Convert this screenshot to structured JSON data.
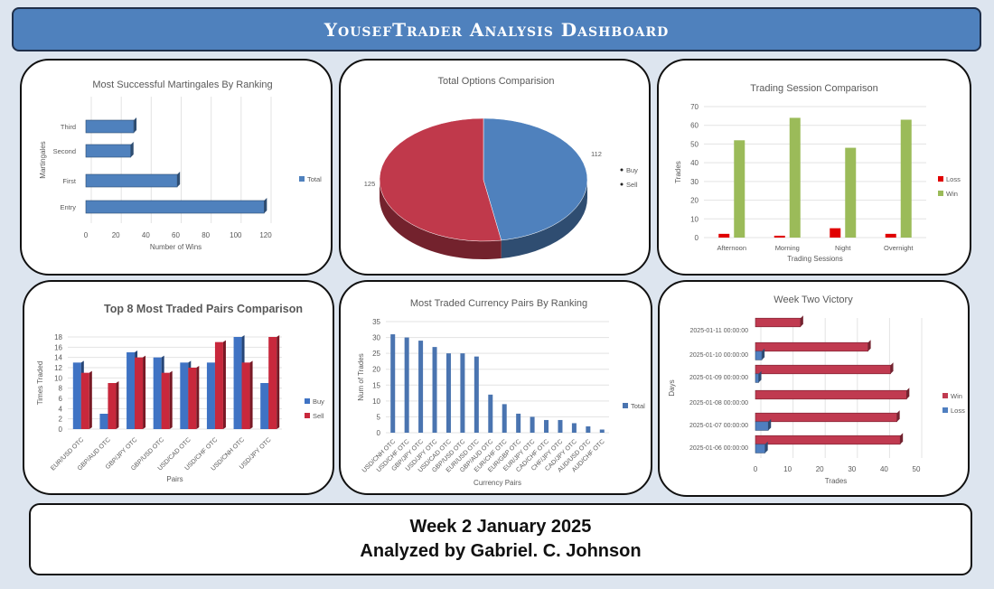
{
  "header": {
    "title": "YousefTrader Analysis Dashboard"
  },
  "footer": {
    "line1": "Week 2 January 2025",
    "line2": "Analyzed by Gabriel. C. Johnson"
  },
  "colors": {
    "blue": "#4f81bd",
    "red": "#c0394b",
    "green": "#9bbb59",
    "loss_red": "#e00000"
  },
  "chart_data": [
    {
      "id": "martingales",
      "type": "bar",
      "orientation": "horizontal",
      "title": "Most Successful Martingales By Ranking",
      "xlabel": "Number of Wins",
      "ylabel": "Martingales",
      "categories": [
        "Entry",
        "First",
        "Second",
        "Third"
      ],
      "series": [
        {
          "name": "Total",
          "values": [
            119,
            61,
            30,
            32
          ]
        }
      ],
      "xlim": [
        0,
        120
      ],
      "xticks": [
        0,
        20,
        40,
        60,
        80,
        100,
        120
      ],
      "grid": true,
      "legend": "right"
    },
    {
      "id": "options",
      "type": "pie",
      "title": "Total Options Comparision",
      "categories": [
        "Buy",
        "Sell"
      ],
      "values": [
        112,
        125
      ],
      "data_labels": [
        "112",
        "125"
      ],
      "legend": "right"
    },
    {
      "id": "sessions",
      "type": "bar",
      "title": "Trading Session Comparison",
      "xlabel": "Trading Sessions",
      "ylabel": "Trades",
      "categories": [
        "Afternoon",
        "Morning",
        "Night",
        "Overnight"
      ],
      "series": [
        {
          "name": "Loss",
          "values": [
            2,
            1,
            5,
            2
          ]
        },
        {
          "name": "Win",
          "values": [
            52,
            64,
            48,
            63
          ]
        }
      ],
      "ylim": [
        0,
        70
      ],
      "yticks": [
        0,
        10,
        20,
        30,
        40,
        50,
        60,
        70
      ],
      "grid": true,
      "legend": "right"
    },
    {
      "id": "top8",
      "type": "bar",
      "title": "Top 8 Most Traded Pairs Comparison",
      "xlabel": "Pairs",
      "ylabel": "Times Traded",
      "categories": [
        "EUR/USD OTC",
        "GBP/AUD OTC",
        "GBP/JPY OTC",
        "GBP/USD OTC",
        "USD/CAD OTC",
        "USD/CHF OTC",
        "USD/CNH OTC",
        "USD/JPY OTC"
      ],
      "series": [
        {
          "name": "Buy",
          "values": [
            13,
            3,
            15,
            14,
            13,
            13,
            18,
            9
          ]
        },
        {
          "name": "Sell",
          "values": [
            11,
            9,
            14,
            11,
            12,
            17,
            13,
            18
          ]
        }
      ],
      "ylim": [
        0,
        18
      ],
      "yticks": [
        0,
        2,
        4,
        6,
        8,
        10,
        12,
        14,
        16,
        18
      ],
      "grid": true,
      "legend": "right"
    },
    {
      "id": "pairs",
      "type": "bar",
      "title": "Most Traded Currency Pairs By Ranking",
      "xlabel": "Currency Pairs",
      "ylabel": "Num of Trades",
      "categories": [
        "USD/CNH OTC",
        "USD/CHF OTC",
        "GBP/JPY OTC",
        "USD/JPY OTC",
        "USD/CAD OTC",
        "GBP/USD OTC",
        "EUR/USD OTC",
        "GBP/AUD OTC",
        "EUR/CHF OTC",
        "EUR/GBP OTC",
        "EUR/JPY OTC",
        "CAD/CHF OTC",
        "CHF/JPY OTC",
        "CAD/JPY OTC",
        "AUD/USD OTC",
        "AUD/CHF OTC"
      ],
      "series": [
        {
          "name": "Total",
          "values": [
            31,
            30,
            29,
            27,
            25,
            25,
            24,
            12,
            9,
            6,
            5,
            4,
            4,
            3,
            2,
            1
          ]
        }
      ],
      "ylim": [
        0,
        35
      ],
      "yticks": [
        0,
        5,
        10,
        15,
        20,
        25,
        30,
        35
      ],
      "grid": true,
      "legend": "right"
    },
    {
      "id": "week",
      "type": "bar",
      "orientation": "horizontal",
      "title": "Week Two Victory",
      "xlabel": "Trades",
      "ylabel": "Days",
      "categories": [
        "2025-01-06 00:00:00",
        "2025-01-07 00:00:00",
        "2025-01-08 00:00:00",
        "2025-01-09 00:00:00",
        "2025-01-10 00:00:00",
        "2025-01-11 00:00:00"
      ],
      "series": [
        {
          "name": "Win",
          "values": [
            45,
            44,
            47,
            42,
            35,
            14
          ]
        },
        {
          "name": "Loss",
          "values": [
            3,
            4,
            0,
            1,
            2,
            0
          ]
        }
      ],
      "xlim": [
        0,
        50
      ],
      "xticks": [
        0,
        10,
        20,
        30,
        40,
        50
      ],
      "grid": true,
      "legend": "right"
    }
  ]
}
